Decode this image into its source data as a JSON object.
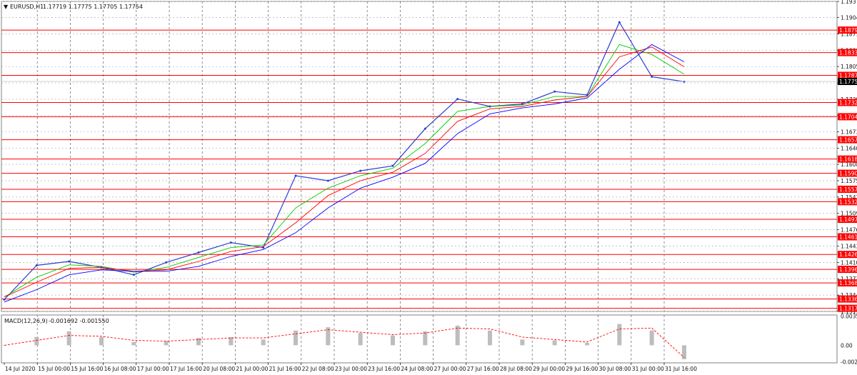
{
  "header": {
    "symbol_label": "EURUSD,H1",
    "ohlc": "1.17719 1.17775 1.17705 1.17754"
  },
  "macd_header": {
    "label": "MACD(12,26,9)",
    "values": "-0.001692 -0.001550"
  },
  "price_axis": {
    "min": 1.1311,
    "max": 1.1937,
    "ticks": [
      "1.19370",
      "1.19045",
      "1.18715",
      "1.18385",
      "1.18055",
      "1.17725",
      "1.17395",
      "1.17065",
      "1.16735",
      "1.16405",
      "1.16080",
      "1.15750",
      "1.15420",
      "1.15090",
      "1.14760",
      "1.14430",
      "1.14100",
      "1.13770",
      "1.13440",
      "1.13110"
    ]
  },
  "levels": [
    "1.18791",
    "1.18337",
    "1.17877",
    "1.17329",
    "1.17042",
    "1.16578",
    "1.16187",
    "1.15900",
    "1.15577",
    "1.15326",
    "1.14970",
    "1.14617",
    "1.14261",
    "1.13960",
    "1.13686",
    "1.13361",
    "1.13173"
  ],
  "current_price": "1.17754",
  "macd_axis": {
    "ticks": [
      "0.00356",
      "0.00",
      "-0.00203"
    ],
    "min": -0.00215,
    "max": 0.0037
  },
  "time_labels": [
    "14 Jul 2020",
    "15 Jul 00:00",
    "15 Jul 16:00",
    "16 Jul 08:00",
    "17 Jul 00:00",
    "17 Jul 16:00",
    "20 Jul 08:00",
    "21 Jul 00:00",
    "21 Jul 16:00",
    "22 Jul 08:00",
    "23 Jul 00:00",
    "23 Jul 16:00",
    "24 Jul 08:00",
    "27 Jul 00:00",
    "27 Jul 16:00",
    "28 Jul 08:00",
    "29 Jul 00:00",
    "29 Jul 16:00",
    "30 Jul 08:00",
    "31 Jul 00:00",
    "31 Jul 16:00"
  ],
  "colors": {
    "price_line": "#2a3fd1",
    "level_line": "#ff0000",
    "level_badge": "#ff0000",
    "ma_fast": "#00cc00",
    "ma_mid": "#ff0000",
    "ma_slow": "#0000ff",
    "macd_hist": "#bdbdbd",
    "macd_signal": "#ff0000",
    "grid": "#b0b0b0"
  },
  "chart_data": {
    "type": "line",
    "title": "EURUSD,H1",
    "x": [
      "14 Jul 2020",
      "15 Jul 00:00",
      "15 Jul 16:00",
      "16 Jul 08:00",
      "17 Jul 00:00",
      "17 Jul 16:00",
      "20 Jul 08:00",
      "21 Jul 00:00",
      "21 Jul 16:00",
      "22 Jul 08:00",
      "23 Jul 00:00",
      "23 Jul 16:00",
      "24 Jul 08:00",
      "27 Jul 00:00",
      "27 Jul 16:00",
      "28 Jul 08:00",
      "29 Jul 00:00",
      "29 Jul 16:00",
      "30 Jul 08:00",
      "31 Jul 00:00",
      "31 Jul 16:00",
      "31 Jul 23:00"
    ],
    "series": [
      {
        "values": [
          1.1335,
          1.1404,
          1.1412,
          1.14,
          1.1385,
          1.141,
          1.143,
          1.145,
          1.144,
          1.1585,
          1.1575,
          1.1595,
          1.1605,
          1.168,
          1.174,
          1.1725,
          1.173,
          1.1755,
          1.1748,
          1.1895,
          1.1785,
          1.1775
        ]
      },
      {
        "values": [
          1.134,
          1.138,
          1.1405,
          1.1402,
          1.139,
          1.14,
          1.142,
          1.144,
          1.1445,
          1.152,
          1.156,
          1.1585,
          1.16,
          1.165,
          1.1715,
          1.1725,
          1.1728,
          1.1745,
          1.1745,
          1.185,
          1.183,
          1.179
        ]
      },
      {
        "values": [
          1.134,
          1.137,
          1.1398,
          1.14,
          1.1392,
          1.1395,
          1.1412,
          1.1432,
          1.1442,
          1.149,
          1.1545,
          1.1575,
          1.1592,
          1.163,
          1.1695,
          1.172,
          1.1725,
          1.1738,
          1.1745,
          1.1825,
          1.1845,
          1.1805
        ]
      },
      {
        "values": [
          1.133,
          1.1355,
          1.1385,
          1.1395,
          1.1392,
          1.1392,
          1.1402,
          1.1422,
          1.1436,
          1.147,
          1.152,
          1.156,
          1.1582,
          1.161,
          1.167,
          1.171,
          1.1722,
          1.173,
          1.1742,
          1.18,
          1.185,
          1.1815
        ]
      }
    ],
    "macd": {
      "histogram": [
        0.0,
        0.001,
        0.0017,
        0.001,
        0.0004,
        0.0005,
        0.0009,
        0.001,
        0.0007,
        0.0018,
        0.0022,
        0.0015,
        0.0012,
        0.0017,
        0.0024,
        0.0018,
        0.0007,
        0.0006,
        0.0003,
        0.0026,
        0.0018,
        -0.0017
      ],
      "signal": [
        0.0,
        0.0006,
        0.0012,
        0.0011,
        0.0006,
        0.0005,
        0.0007,
        0.0009,
        0.0009,
        0.0014,
        0.0019,
        0.0016,
        0.0013,
        0.0015,
        0.0021,
        0.002,
        0.001,
        0.0007,
        0.0004,
        0.002,
        0.0021,
        -0.0015
      ]
    },
    "ylim": [
      1.1311,
      1.1937
    ]
  }
}
